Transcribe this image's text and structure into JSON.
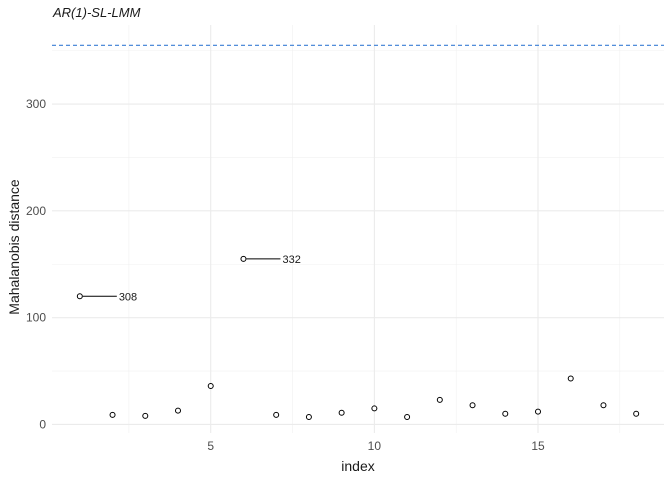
{
  "chart_data": {
    "type": "scatter",
    "title": "AR(1)-SL-LMM",
    "xlabel": "index",
    "ylabel": "Mahalanobis distance",
    "xlim": [
      0.15,
      18.85
    ],
    "ylim": [
      -8,
      374
    ],
    "x_ticks": [
      5,
      10,
      15
    ],
    "y_ticks": [
      0,
      100,
      200,
      300
    ],
    "grid": true,
    "threshold": 355,
    "threshold_color": "#3a7fd5",
    "points": [
      {
        "x": 1,
        "y": 120
      },
      {
        "x": 2,
        "y": 9
      },
      {
        "x": 3,
        "y": 8
      },
      {
        "x": 4,
        "y": 13
      },
      {
        "x": 5,
        "y": 36
      },
      {
        "x": 6,
        "y": 155
      },
      {
        "x": 7,
        "y": 9
      },
      {
        "x": 8,
        "y": 7
      },
      {
        "x": 9,
        "y": 11
      },
      {
        "x": 10,
        "y": 15
      },
      {
        "x": 11,
        "y": 7
      },
      {
        "x": 12,
        "y": 23
      },
      {
        "x": 13,
        "y": 18
      },
      {
        "x": 14,
        "y": 10
      },
      {
        "x": 15,
        "y": 12
      },
      {
        "x": 16,
        "y": 43
      },
      {
        "x": 17,
        "y": 18
      },
      {
        "x": 18,
        "y": 10
      }
    ],
    "labels": [
      {
        "x": 1,
        "y": 120,
        "text": "308"
      },
      {
        "x": 6,
        "y": 155,
        "text": "332"
      }
    ]
  }
}
